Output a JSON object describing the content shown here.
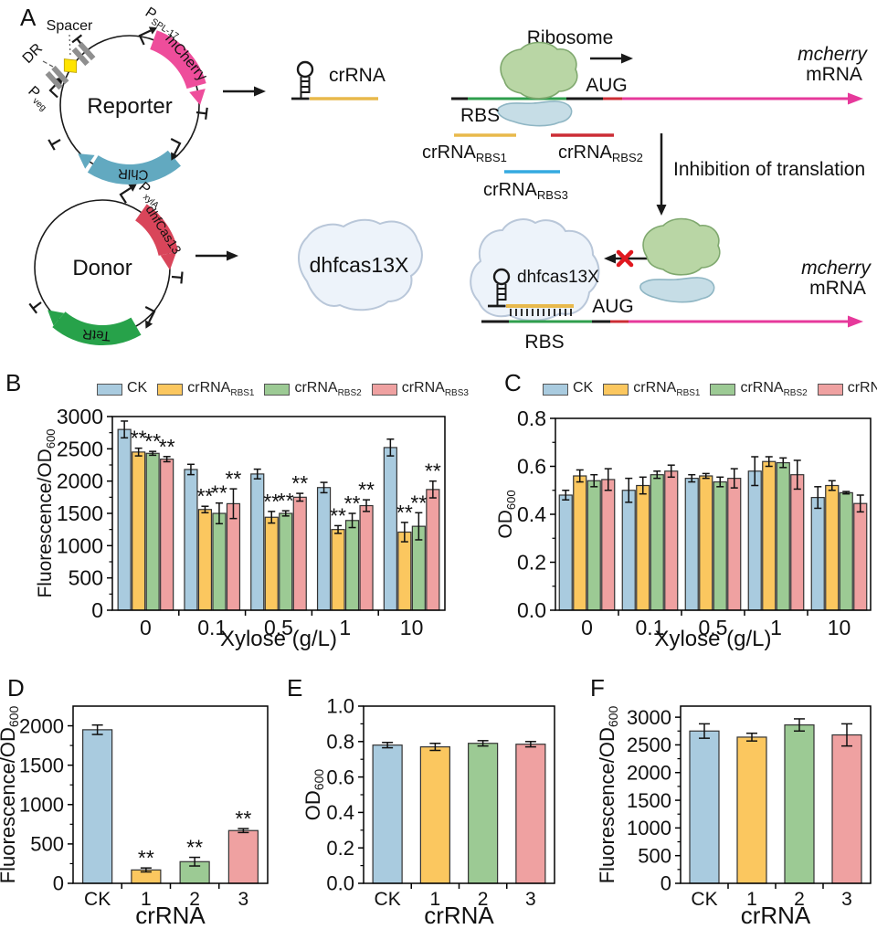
{
  "panel_labels": {
    "a": "A",
    "b": "B",
    "c": "C",
    "d": "D",
    "e": "E",
    "f": "F"
  },
  "colors": {
    "bar_ck": "#a9cbdf",
    "bar_rbs1": "#fbc75f",
    "bar_rbs2": "#9cca94",
    "bar_rbs3": "#efa1a1",
    "bar_stroke": "#333333",
    "mcherry_arrow": "#ee4d9b",
    "chlr_arrow": "#62a9c0",
    "dhfcas13_arrow": "#d9455a",
    "tetr_arrow": "#27a24a",
    "mrna_arrow": "#e6399b",
    "crrna_rbs1_line": "#e8b94b",
    "crrna_rbs2_line": "#cc2d35",
    "crrna_rbs3_line": "#35aae0",
    "rbs_segment": "#2f9e4d",
    "aug_segment": "#cc2d35",
    "ribosome_large_fill": "#b9d6a5",
    "ribosome_large_stroke": "#7fa86e",
    "ribosome_small_fill": "#c6dde6",
    "ribosome_small_stroke": "#8fb6c4",
    "blob_fill": "#edf3fa",
    "blob_stroke": "#b9c7d9",
    "spacer_fill": "#ffe400",
    "dr_fill": "#8f8f8f",
    "x_mark": "#e0181f"
  },
  "diagram": {
    "reporter_plasmid": {
      "name": "Reporter",
      "spacer": "Spacer",
      "dr": "DR",
      "p_veg_main": "P",
      "p_veg_sub": "veg",
      "p_spl_main": "P",
      "p_spl_sub": "SPL-17",
      "mcherry_gene": "mCherry",
      "chlr_gene": "ChlR"
    },
    "crrna_product": "crRNA",
    "donor_plasmid": {
      "name": "Donor",
      "p_xyla_main": "P",
      "p_xyla_sub": "xylA",
      "dhfcas13_gene": "dhfCas13",
      "tetr_gene": "TetR"
    },
    "dhfcas13x_product": "dhfcas13X",
    "translation_on": {
      "ribosome": "Ribosome",
      "rbs": "RBS",
      "aug": "AUG",
      "mrna_line1": "mcherry",
      "mrna_line2": "mRNA"
    },
    "crrna_targets": [
      {
        "main": "crRNA",
        "sub": "RBS1"
      },
      {
        "main": "crRNA",
        "sub": "RBS2"
      },
      {
        "main": "crRNA",
        "sub": "RBS3"
      }
    ],
    "inhibition_label": "Inhibition of translation",
    "translation_off": {
      "dhfcas13x": "dhfcas13X",
      "rbs": "RBS",
      "aug": "AUG",
      "mrna_line1": "mcherry",
      "mrna_line2": "mRNA"
    }
  },
  "legend": [
    {
      "label": "CK",
      "sub": ""
    },
    {
      "label": "crRNA",
      "sub": "RBS1"
    },
    {
      "label": "crRNA",
      "sub": "RBS2"
    },
    {
      "label": "crRNA",
      "sub": "RBS3"
    }
  ],
  "chart_data": [
    {
      "panel": "B",
      "type": "bar",
      "grouped": true,
      "xlabel": "Xylose (g/L)",
      "ylabel": "Fluorescence/OD",
      "ylabel_sub": "600",
      "categories": [
        "0",
        "0.1",
        "0.5",
        "1",
        "10"
      ],
      "ylim": [
        0,
        3000
      ],
      "ytick_values": [
        0,
        500,
        1000,
        1500,
        2000,
        2500,
        3000
      ],
      "ytick_labels": [
        "0",
        "500",
        "1000",
        "1500",
        "2000",
        "2500",
        "3000"
      ],
      "series": [
        {
          "name": "CK",
          "values": [
            2800,
            2180,
            2110,
            1900,
            2520
          ],
          "errors": [
            130,
            80,
            75,
            80,
            130
          ],
          "sig": [
            "",
            "",
            "",
            "",
            ""
          ]
        },
        {
          "name": "crRNA_RBS1",
          "values": [
            2450,
            1560,
            1440,
            1250,
            1210
          ],
          "errors": [
            60,
            50,
            90,
            60,
            150
          ],
          "sig": [
            "**",
            "**",
            "**",
            "**",
            "**"
          ]
        },
        {
          "name": "crRNA_RBS2",
          "values": [
            2430,
            1500,
            1500,
            1390,
            1300
          ],
          "errors": [
            30,
            160,
            40,
            110,
            210
          ],
          "sig": [
            "**",
            "**",
            "**",
            "**",
            "**"
          ]
        },
        {
          "name": "crRNA_RBS3",
          "values": [
            2340,
            1650,
            1750,
            1620,
            1870
          ],
          "errors": [
            40,
            230,
            60,
            90,
            130
          ],
          "sig": [
            "**",
            "**",
            "**",
            "**",
            "**"
          ]
        }
      ]
    },
    {
      "panel": "C",
      "type": "bar",
      "grouped": true,
      "xlabel": "Xylose (g/L)",
      "ylabel": "OD",
      "ylabel_sub": "600",
      "categories": [
        "0",
        "0.1",
        "0.5",
        "1",
        "10"
      ],
      "ylim": [
        0,
        0.8
      ],
      "ytick_values": [
        0,
        0.2,
        0.4,
        0.6,
        0.8
      ],
      "ytick_labels": [
        "0.0",
        "0.2",
        "0.4",
        "0.6",
        "0.8"
      ],
      "series": [
        {
          "name": "CK",
          "values": [
            0.48,
            0.5,
            0.55,
            0.58,
            0.47
          ],
          "errors": [
            0.02,
            0.05,
            0.015,
            0.06,
            0.045
          ],
          "sig": [
            "",
            "",
            "",
            "",
            ""
          ]
        },
        {
          "name": "crRNA_RBS1",
          "values": [
            0.56,
            0.52,
            0.56,
            0.62,
            0.52
          ],
          "errors": [
            0.025,
            0.035,
            0.01,
            0.02,
            0.02
          ],
          "sig": [
            "",
            "",
            "",
            "",
            ""
          ]
        },
        {
          "name": "crRNA_RBS2",
          "values": [
            0.54,
            0.565,
            0.535,
            0.615,
            0.49
          ],
          "errors": [
            0.025,
            0.015,
            0.02,
            0.02,
            0.005
          ],
          "sig": [
            "",
            "",
            "",
            "",
            ""
          ]
        },
        {
          "name": "crRNA_RBS3",
          "values": [
            0.545,
            0.58,
            0.55,
            0.565,
            0.445
          ],
          "errors": [
            0.045,
            0.025,
            0.04,
            0.06,
            0.035
          ],
          "sig": [
            "",
            "",
            "",
            "",
            ""
          ]
        }
      ]
    },
    {
      "panel": "D",
      "type": "bar",
      "grouped": false,
      "xlabel": "crRNA",
      "ylabel": "Fluorescence/OD",
      "ylabel_sub": "600",
      "categories": [
        "CK",
        "1",
        "2",
        "3"
      ],
      "ylim": [
        0,
        2250
      ],
      "ytick_values": [
        0,
        500,
        1000,
        1500,
        2000
      ],
      "ytick_labels": [
        "0",
        "500",
        "1000",
        "1500",
        "2000"
      ],
      "values": [
        1950,
        170,
        275,
        670
      ],
      "errors": [
        60,
        25,
        55,
        25
      ],
      "sig": [
        "",
        "**",
        "**",
        "**"
      ]
    },
    {
      "panel": "E",
      "type": "bar",
      "grouped": false,
      "xlabel": "crRNA",
      "ylabel": "OD",
      "ylabel_sub": "600",
      "categories": [
        "CK",
        "1",
        "2",
        "3"
      ],
      "ylim": [
        0,
        1.0
      ],
      "ytick_values": [
        0,
        0.2,
        0.4,
        0.6,
        0.8,
        1.0
      ],
      "ytick_labels": [
        "0.0",
        "0.2",
        "0.4",
        "0.6",
        "0.8",
        "1.0"
      ],
      "values": [
        0.78,
        0.77,
        0.79,
        0.785
      ],
      "errors": [
        0.015,
        0.02,
        0.015,
        0.015
      ],
      "sig": [
        "",
        "",
        "",
        ""
      ]
    },
    {
      "panel": "F",
      "type": "bar",
      "grouped": false,
      "xlabel": "crRNA",
      "ylabel": "Fluorescence/OD",
      "ylabel_sub": "600",
      "categories": [
        "CK",
        "1",
        "2",
        "3"
      ],
      "ylim": [
        0,
        3200
      ],
      "ytick_values": [
        0,
        500,
        1000,
        1500,
        2000,
        2500,
        3000
      ],
      "ytick_labels": [
        "0",
        "500",
        "1000",
        "1500",
        "2000",
        "2500",
        "3000"
      ],
      "values": [
        2750,
        2640,
        2860,
        2680
      ],
      "errors": [
        130,
        70,
        110,
        200
      ],
      "sig": [
        "",
        "",
        "",
        ""
      ]
    }
  ]
}
